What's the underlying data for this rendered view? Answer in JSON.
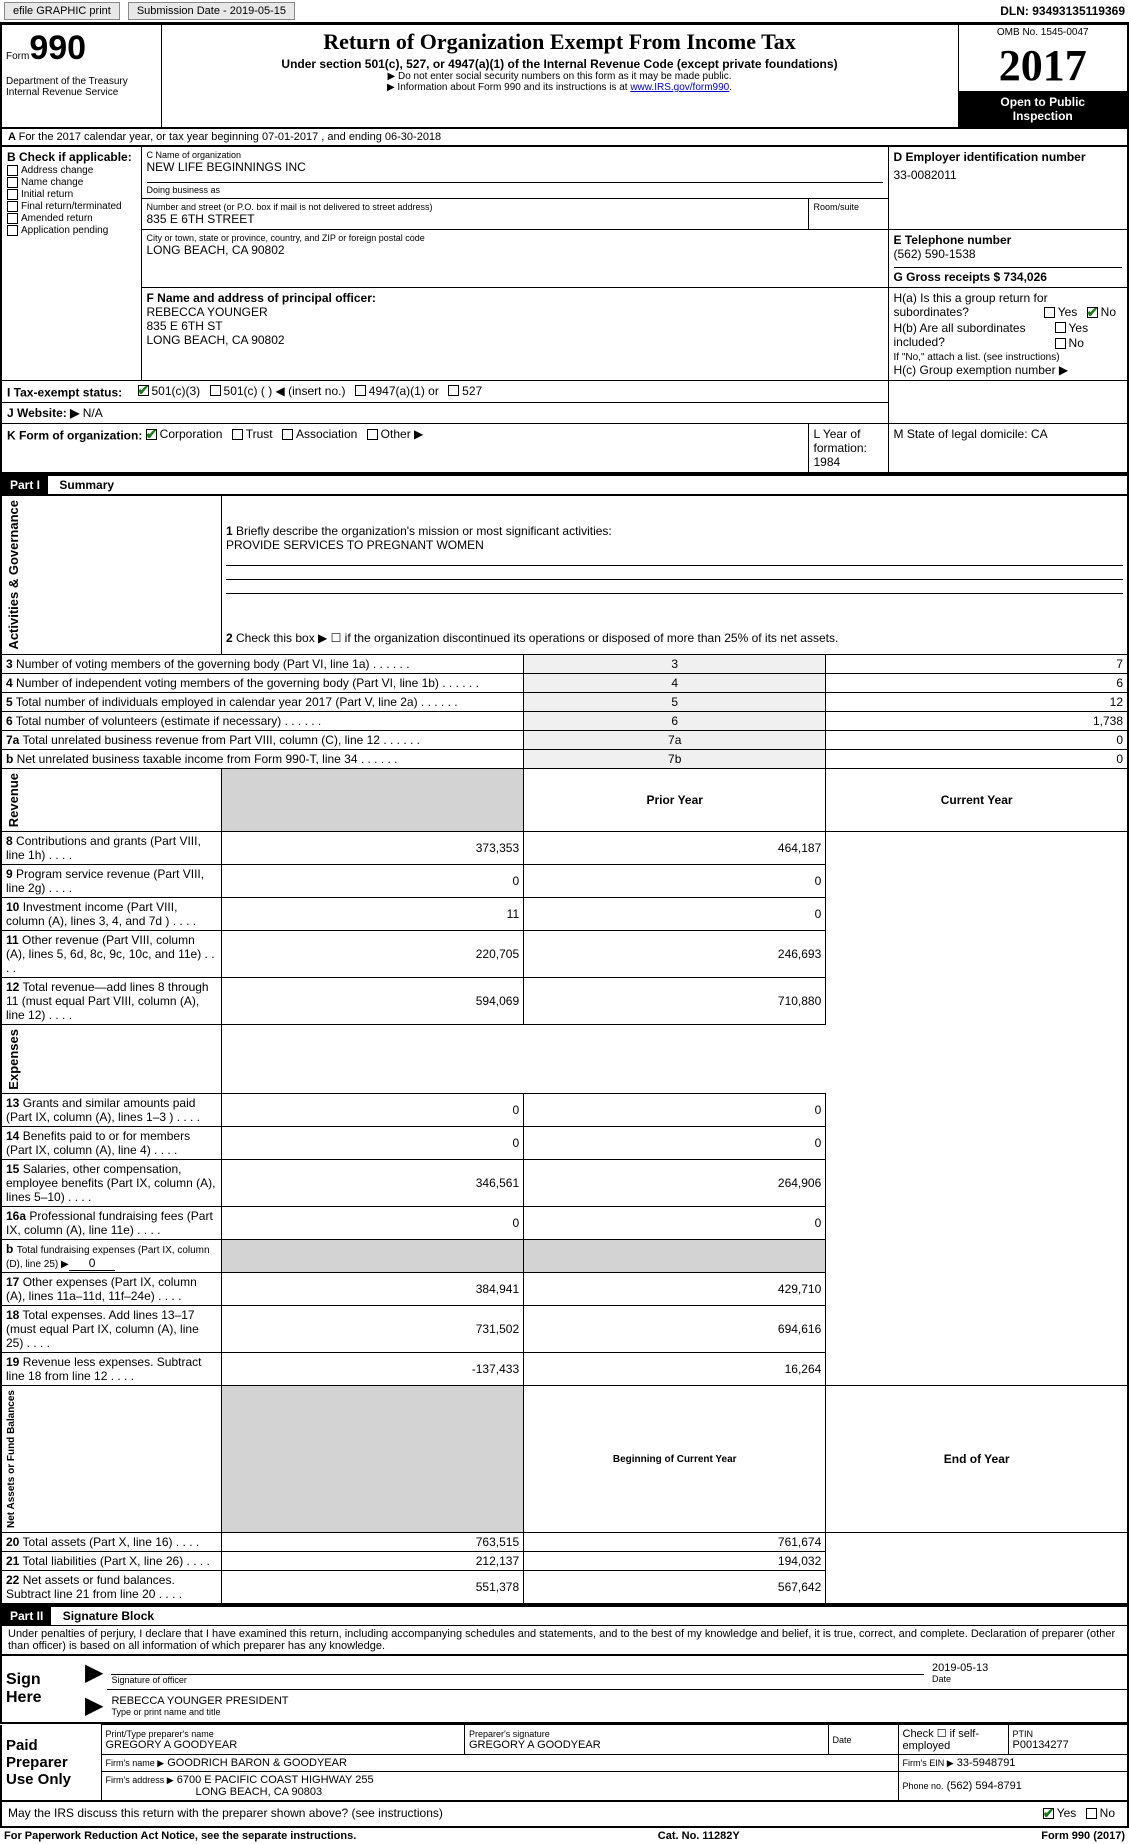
{
  "topbar": {
    "efile": "efile GRAPHIC print",
    "submission_label": "Submission Date - 2019-05-15",
    "dln_label": "DLN: 93493135119369"
  },
  "header": {
    "form_word": "Form",
    "form_no": "990",
    "dept1": "Department of the Treasury",
    "dept2": "Internal Revenue Service",
    "title": "Return of Organization Exempt From Income Tax",
    "sub1": "Under section 501(c), 527, or 4947(a)(1) of the Internal Revenue Code (except private foundations)",
    "sub2": "▶ Do not enter social security numbers on this form as it may be made public.",
    "sub3a": "▶ Information about Form 990 and its instructions is at ",
    "sub3link": "www.IRS.gov/form990",
    "omb": "OMB No. 1545-0047",
    "year": "2017",
    "open1": "Open to Public",
    "open2": "Inspection"
  },
  "period": "For the 2017 calendar year, or tax year beginning 07-01-2017   , and ending 06-30-2018",
  "secB": {
    "label": "B Check if applicable:",
    "items": [
      "Address change",
      "Name change",
      "Initial return",
      "Final return/terminated",
      "Amended return",
      "Application pending"
    ]
  },
  "secC": {
    "name_label": "C Name of organization",
    "name": "NEW LIFE BEGINNINGS INC",
    "dba_label": "Doing business as",
    "dba": "",
    "addr_label": "Number and street (or P.O. box if mail is not delivered to street address)",
    "room_label": "Room/suite",
    "addr": "835 E 6TH STREET",
    "city_label": "City or town, state or province, country, and ZIP or foreign postal code",
    "city": "LONG BEACH, CA  90802"
  },
  "secD": {
    "label": "D Employer identification number",
    "val": "33-0082011"
  },
  "secE": {
    "label": "E Telephone number",
    "val": "(562) 590-1538"
  },
  "secG": {
    "label": "G Gross receipts $ 734,026"
  },
  "secF": {
    "label": "F  Name and address of principal officer:",
    "l1": "REBECCA YOUNGER",
    "l2": "835 E 6TH ST",
    "l3": "LONG BEACH, CA  90802"
  },
  "secH": {
    "a": "H(a)  Is this a group return for",
    "a2": "subordinates?",
    "b": "H(b)  Are all subordinates included?",
    "b2": "If \"No,\" attach a list. (see instructions)",
    "c": "H(c)  Group exemption number ▶"
  },
  "secI": {
    "label": "I    Tax-exempt status:",
    "opt1": "501(c)(3)",
    "opt2": "501(c) (   ) ◀ (insert no.)",
    "opt3": "4947(a)(1) or",
    "opt4": "527"
  },
  "secJ": {
    "label": "J   Website: ▶",
    "val": "N/A"
  },
  "secK": {
    "label": "K Form of organization:",
    "o1": "Corporation",
    "o2": "Trust",
    "o3": "Association",
    "o4": "Other ▶"
  },
  "secL": {
    "label": "L Year of formation: 1984"
  },
  "secM": {
    "label": "M State of legal domicile: CA"
  },
  "part1": {
    "title": "Part I",
    "sub": "Summary",
    "side1": "Activities & Governance",
    "side2": "Revenue",
    "side3": "Expenses",
    "side4": "Net Assets or Fund Balances",
    "l1": "Briefly describe the organization's mission or most significant activities:",
    "l1v": "PROVIDE SERVICES TO PREGNANT WOMEN",
    "l2": "Check this box ▶ ☐  if the organization discontinued its operations or disposed of more than 25% of its net assets.",
    "rows_gov": [
      {
        "n": "3",
        "t": "Number of voting members of the governing body (Part VI, line 1a)",
        "rn": "3",
        "v": "7"
      },
      {
        "n": "4",
        "t": "Number of independent voting members of the governing body (Part VI, line 1b)",
        "rn": "4",
        "v": "6"
      },
      {
        "n": "5",
        "t": "Total number of individuals employed in calendar year 2017 (Part V, line 2a)",
        "rn": "5",
        "v": "12"
      },
      {
        "n": "6",
        "t": "Total number of volunteers (estimate if necessary)",
        "rn": "6",
        "v": "1,738"
      },
      {
        "n": "7a",
        "t": "Total unrelated business revenue from Part VIII, column (C), line 12",
        "rn": "7a",
        "v": "0"
      },
      {
        "n": "b",
        "t": "Net unrelated business taxable income from Form 990-T, line 34",
        "rn": "7b",
        "v": "0"
      }
    ],
    "col_prior": "Prior Year",
    "col_curr": "Current Year",
    "col_beg": "Beginning of Current Year",
    "col_end": "End of Year",
    "rows_rev": [
      {
        "n": "8",
        "t": "Contributions and grants (Part VIII, line 1h)",
        "p": "373,353",
        "c": "464,187"
      },
      {
        "n": "9",
        "t": "Program service revenue (Part VIII, line 2g)",
        "p": "0",
        "c": "0"
      },
      {
        "n": "10",
        "t": "Investment income (Part VIII, column (A), lines 3, 4, and 7d )",
        "p": "11",
        "c": "0"
      },
      {
        "n": "11",
        "t": "Other revenue (Part VIII, column (A), lines 5, 6d, 8c, 9c, 10c, and 11e)",
        "p": "220,705",
        "c": "246,693"
      },
      {
        "n": "12",
        "t": "Total revenue—add lines 8 through 11 (must equal Part VIII, column (A), line 12)",
        "p": "594,069",
        "c": "710,880"
      }
    ],
    "rows_exp": [
      {
        "n": "13",
        "t": "Grants and similar amounts paid (Part IX, column (A), lines 1–3 )",
        "p": "0",
        "c": "0"
      },
      {
        "n": "14",
        "t": "Benefits paid to or for members (Part IX, column (A), line 4)",
        "p": "0",
        "c": "0"
      },
      {
        "n": "15",
        "t": "Salaries, other compensation, employee benefits (Part IX, column (A), lines 5–10)",
        "p": "346,561",
        "c": "264,906"
      },
      {
        "n": "16a",
        "t": "Professional fundraising fees (Part IX, column (A), line 11e)",
        "p": "0",
        "c": "0"
      }
    ],
    "l16b": "Total fundraising expenses (Part IX, column (D), line 25) ▶",
    "l16bv": "0",
    "rows_exp2": [
      {
        "n": "17",
        "t": "Other expenses (Part IX, column (A), lines 11a–11d, 11f–24e)",
        "p": "384,941",
        "c": "429,710"
      },
      {
        "n": "18",
        "t": "Total expenses. Add lines 13–17 (must equal Part IX, column (A), line 25)",
        "p": "731,502",
        "c": "694,616"
      },
      {
        "n": "19",
        "t": "Revenue less expenses. Subtract line 18 from line 12",
        "p": "-137,433",
        "c": "16,264"
      }
    ],
    "rows_net": [
      {
        "n": "20",
        "t": "Total assets (Part X, line 16)",
        "p": "763,515",
        "c": "761,674"
      },
      {
        "n": "21",
        "t": "Total liabilities (Part X, line 26)",
        "p": "212,137",
        "c": "194,032"
      },
      {
        "n": "22",
        "t": "Net assets or fund balances. Subtract line 21 from line 20",
        "p": "551,378",
        "c": "567,642"
      }
    ]
  },
  "part2": {
    "title": "Part II",
    "sub": "Signature Block",
    "decl": "Under penalties of perjury, I declare that I have examined this return, including accompanying schedules and statements, and to the best of my knowledge and belief, it is true, correct, and complete. Declaration of preparer (other than officer) is based on all information of which preparer has any knowledge.",
    "sign_here": "Sign Here",
    "sig_officer": "Signature of officer",
    "sig_date": "2019-05-13",
    "date_lbl": "Date",
    "officer_name": "REBECCA YOUNGER PRESIDENT",
    "officer_lbl": "Type or print name and title",
    "paid": "Paid Preparer Use Only",
    "prep_name_lbl": "Print/Type preparer's name",
    "prep_name": "GREGORY A GOODYEAR",
    "prep_sig_lbl": "Preparer's signature",
    "prep_sig": "GREGORY A GOODYEAR",
    "prep_date_lbl": "Date",
    "self_emp": "Check ☐ if self-employed",
    "ptin_lbl": "PTIN",
    "ptin": "P00134277",
    "firm_name_lbl": "Firm's name    ▶",
    "firm_name": "GOODRICH BARON & GOODYEAR",
    "firm_ein_lbl": "Firm's EIN ▶",
    "firm_ein": "33-5948791",
    "firm_addr_lbl": "Firm's address ▶",
    "firm_addr1": "6700 E PACIFIC COAST HIGHWAY 255",
    "firm_addr2": "LONG BEACH, CA  90803",
    "firm_phone_lbl": "Phone no.",
    "firm_phone": "(562) 594-8791",
    "discuss": "May the IRS discuss this return with the preparer shown above? (see instructions)"
  },
  "footer": {
    "l": "For Paperwork Reduction Act Notice, see the separate instructions.",
    "c": "Cat. No. 11282Y",
    "r": "Form 990 (2017)"
  }
}
